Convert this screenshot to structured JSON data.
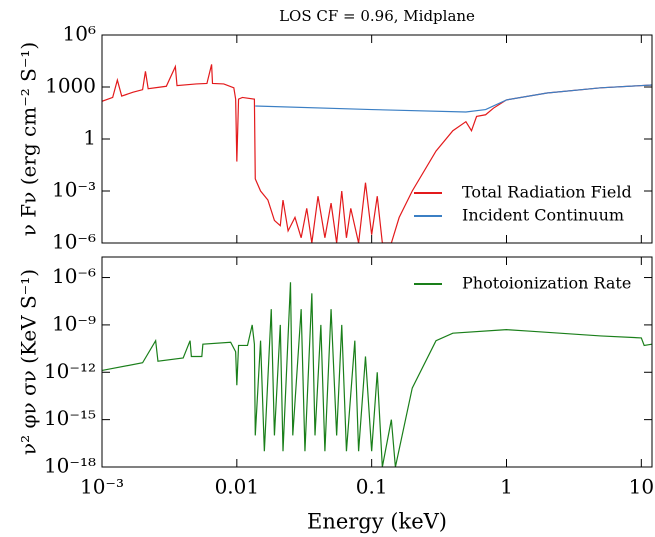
{
  "chart_data": [
    {
      "type": "line",
      "title": "LOS CF = 0.96, Midplane",
      "ylabel": "ν Fν (erg cm⁻² S⁻¹)",
      "xscale": "log",
      "yscale": "log",
      "xlim": [
        0.001,
        12
      ],
      "ylim": [
        1e-06,
        1000000
      ],
      "xticks": [
        0.001,
        0.01,
        0.1,
        1,
        10
      ],
      "yticks": [
        {
          "value": 1000000,
          "label": "10⁶"
        },
        1000,
        1,
        {
          "value": 0.001,
          "label": "10⁻³"
        },
        {
          "value": 1e-06,
          "label": "10⁻⁶"
        }
      ],
      "legend": "lower right",
      "series": [
        {
          "name": "Total Radiation Field",
          "color": "#e31a1c",
          "x": [
            0.001,
            0.0012,
            0.0013,
            0.0014,
            0.0017,
            0.002,
            0.0021,
            0.0022,
            0.003,
            0.0035,
            0.0036,
            0.005,
            0.006,
            0.0065,
            0.0066,
            0.008,
            0.0095,
            0.0098,
            0.01,
            0.0103,
            0.011,
            0.0135,
            0.0137,
            0.015,
            0.017,
            0.019,
            0.021,
            0.022,
            0.024,
            0.027,
            0.03,
            0.033,
            0.036,
            0.04,
            0.045,
            0.05,
            0.055,
            0.06,
            0.065,
            0.07,
            0.08,
            0.09,
            0.1,
            0.11,
            0.12,
            0.14,
            0.16,
            0.2,
            0.3,
            0.4,
            0.5,
            0.55,
            0.6,
            0.7,
            0.8,
            1,
            2,
            5,
            12
          ],
          "values": [
            150,
            250,
            2500,
            300,
            500,
            700,
            8000,
            800,
            1100,
            15000,
            1200,
            1500,
            1600,
            20000,
            1600,
            1500,
            900,
            200,
            0.05,
            200,
            250,
            200,
            0.005,
            0.001,
            0.0003,
            2e-05,
            1e-05,
            0.0003,
            5e-06,
            3e-05,
            2e-06,
            0.0001,
            1e-06,
            0.0005,
            2e-06,
            0.0002,
            1e-06,
            0.001,
            2e-06,
            0.0001,
            1e-06,
            0.003,
            3e-06,
            0.0005,
            1e-06,
            1e-06,
            3e-05,
            0.001,
            0.2,
            3,
            10,
            3,
            20,
            25,
            60,
            180,
            450,
            900,
            1300
          ]
        },
        {
          "name": "Incident Continuum",
          "color": "#3b7fc4",
          "x": [
            0.0137,
            0.1,
            0.5,
            0.7,
            1,
            2,
            5,
            12
          ],
          "values": [
            80,
            50,
            36,
            50,
            180,
            450,
            900,
            1300
          ]
        }
      ]
    },
    {
      "type": "line",
      "xlabel": "Energy (keV)",
      "ylabel": "ν² φν σν (KeV S⁻¹)",
      "xscale": "log",
      "yscale": "log",
      "xlim": [
        0.001,
        12
      ],
      "ylim": [
        1e-18,
        2e-05
      ],
      "xticks": [
        {
          "value": 0.001,
          "label": "10⁻³"
        },
        0.01,
        0.1,
        1,
        10
      ],
      "yticks": [
        {
          "value": 1e-06,
          "label": "10⁻⁶"
        },
        {
          "value": 1e-09,
          "label": "10⁻⁹"
        },
        {
          "value": 1e-12,
          "label": "10⁻¹²"
        },
        {
          "value": 1e-15,
          "label": "10⁻¹⁵"
        },
        {
          "value": 1e-18,
          "label": "10⁻¹⁸"
        }
      ],
      "legend": "upper right",
      "series": [
        {
          "name": "Photoionization Rate",
          "color": "#1a7f1a",
          "x": [
            0.001,
            0.002,
            0.0025,
            0.0026,
            0.004,
            0.0045,
            0.0046,
            0.0055,
            0.0056,
            0.009,
            0.0098,
            0.01,
            0.0103,
            0.012,
            0.013,
            0.0135,
            0.0137,
            0.015,
            0.016,
            0.018,
            0.019,
            0.021,
            0.022,
            0.025,
            0.026,
            0.03,
            0.032,
            0.036,
            0.038,
            0.042,
            0.045,
            0.05,
            0.055,
            0.06,
            0.065,
            0.075,
            0.08,
            0.09,
            0.1,
            0.11,
            0.12,
            0.14,
            0.15,
            0.2,
            0.3,
            0.4,
            1,
            1.5,
            5,
            10,
            10.5,
            12
          ],
          "values": [
            1.3e-12,
            4e-12,
            1e-10,
            5e-12,
            8e-12,
            1e-10,
            1e-11,
            1e-11,
            6e-11,
            8e-11,
            2e-11,
            1.5e-13,
            5e-11,
            5e-11,
            1e-09,
            6e-11,
            1e-16,
            1e-10,
            1e-17,
            1e-08,
            1e-16,
            1e-09,
            1e-17,
            5e-07,
            1e-16,
            1e-08,
            1e-17,
            1e-07,
            1e-16,
            1e-09,
            1e-17,
            1e-08,
            1e-16,
            1e-09,
            1e-17,
            1e-10,
            1e-17,
            1e-11,
            1e-17,
            1e-12,
            1e-18,
            1e-15,
            1e-18,
            1e-13,
            1e-10,
            3e-10,
            5e-10,
            4e-10,
            2e-10,
            1.5e-10,
            5e-11,
            6e-11
          ]
        }
      ]
    }
  ]
}
